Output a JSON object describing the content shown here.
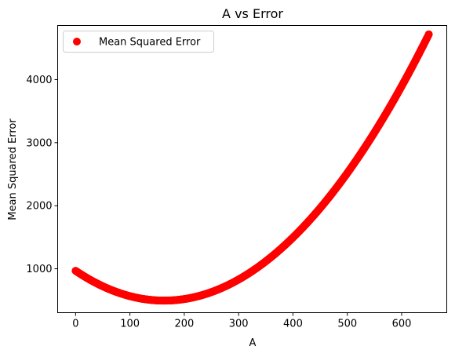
{
  "chart_data": {
    "type": "scatter",
    "title": "A vs Error",
    "xlabel": "A",
    "ylabel": "Mean Squared Error",
    "xlim": [
      -33,
      683
    ],
    "ylim": [
      304,
      4858
    ],
    "x_ticks": [
      0,
      100,
      200,
      300,
      400,
      500,
      600
    ],
    "y_ticks": [
      1000,
      2000,
      3000,
      4000
    ],
    "grid": false,
    "legend_position": "upper-left",
    "series": [
      {
        "name": "Mean Squared Error",
        "color": "#ff0000",
        "marker": "circle",
        "x_range": [
          0,
          650
        ],
        "x_step": 1,
        "model": "quadratic",
        "quadratic_coefficients": {
          "a": 0.0178,
          "b": -5.8,
          "c": 968
        }
      }
    ]
  }
}
